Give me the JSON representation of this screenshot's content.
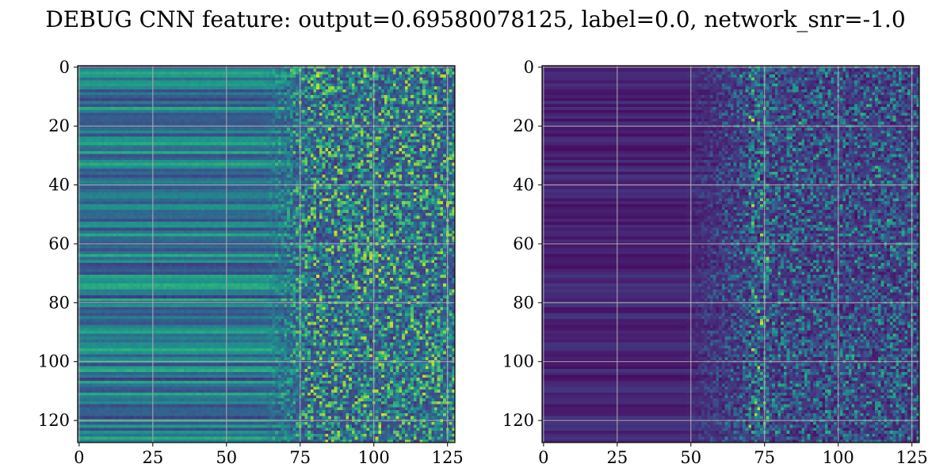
{
  "figure": {
    "title": "DEBUG CNN feature: output=0.69580078125, label=0.0, network_snr=-1.0"
  },
  "chart_data": [
    {
      "type": "heatmap",
      "title": "",
      "xlabel": "",
      "ylabel": "",
      "xlim": [
        0,
        127
      ],
      "ylim": [
        127,
        0
      ],
      "grid": true,
      "colormap": "viridis",
      "shape": [
        128,
        128
      ],
      "x_ticks": [
        "0",
        "25",
        "50",
        "75",
        "100",
        "125"
      ],
      "y_ticks": [
        "0",
        "20",
        "40",
        "60",
        "80",
        "100",
        "120"
      ]
    },
    {
      "type": "heatmap",
      "title": "",
      "xlabel": "",
      "ylabel": "",
      "xlim": [
        0,
        127
      ],
      "ylim": [
        127,
        0
      ],
      "grid": true,
      "colormap": "viridis",
      "shape": [
        128,
        128
      ],
      "x_ticks": [
        "0",
        "25",
        "50",
        "75",
        "100",
        "125"
      ],
      "y_ticks": [
        "0",
        "20",
        "40",
        "60",
        "80",
        "100",
        "120"
      ]
    }
  ],
  "colors": {
    "viridis_low": "#440154",
    "viridis_mid": "#21918c",
    "viridis_high": "#fde725",
    "grid": "#b0b0b0",
    "frame": "#000000"
  }
}
